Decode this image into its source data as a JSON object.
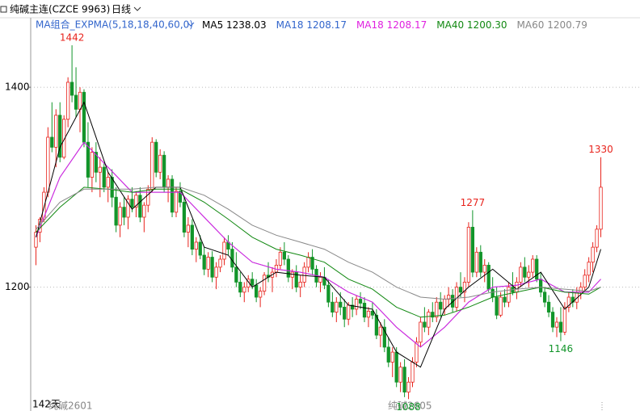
{
  "chart_data": {
    "type": "candlestick",
    "title": "纯碱主连(CZCE 9963)",
    "period": "日线",
    "indicator": "MA组合_EXPMA(5,18,18,40,60,0)",
    "ylim": [
      1085,
      1455
    ],
    "yticks": [
      1200,
      1400
    ],
    "grid": true,
    "up_color": "#e8231c",
    "down_color": "#12952a",
    "candles": [
      [
        1240,
        1262,
        1222,
        1255
      ],
      [
        1255,
        1270,
        1245,
        1268
      ],
      [
        1268,
        1300,
        1265,
        1295
      ],
      [
        1295,
        1360,
        1290,
        1350
      ],
      [
        1350,
        1385,
        1335,
        1340
      ],
      [
        1340,
        1378,
        1320,
        1372
      ],
      [
        1372,
        1385,
        1325,
        1330
      ],
      [
        1330,
        1372,
        1328,
        1368
      ],
      [
        1368,
        1410,
        1360,
        1405
      ],
      [
        1405,
        1442,
        1385,
        1392
      ],
      [
        1392,
        1420,
        1370,
        1378
      ],
      [
        1378,
        1400,
        1355,
        1395
      ],
      [
        1395,
        1398,
        1340,
        1345
      ],
      [
        1345,
        1365,
        1300,
        1310
      ],
      [
        1310,
        1340,
        1295,
        1335
      ],
      [
        1335,
        1345,
        1305,
        1315
      ],
      [
        1315,
        1330,
        1290,
        1320
      ],
      [
        1320,
        1325,
        1295,
        1300
      ],
      [
        1300,
        1315,
        1285,
        1310
      ],
      [
        1310,
        1318,
        1280,
        1290
      ],
      [
        1290,
        1300,
        1255,
        1262
      ],
      [
        1262,
        1285,
        1250,
        1280
      ],
      [
        1280,
        1290,
        1262,
        1270
      ],
      [
        1270,
        1292,
        1258,
        1288
      ],
      [
        1288,
        1300,
        1275,
        1280
      ],
      [
        1280,
        1296,
        1270,
        1292
      ],
      [
        1292,
        1300,
        1265,
        1270
      ],
      [
        1270,
        1285,
        1255,
        1282
      ],
      [
        1282,
        1302,
        1275,
        1298
      ],
      [
        1298,
        1350,
        1295,
        1345
      ],
      [
        1345,
        1348,
        1310,
        1315
      ],
      [
        1315,
        1338,
        1308,
        1332
      ],
      [
        1332,
        1336,
        1295,
        1300
      ],
      [
        1300,
        1312,
        1285,
        1308
      ],
      [
        1308,
        1312,
        1270,
        1275
      ],
      [
        1275,
        1300,
        1270,
        1296
      ],
      [
        1296,
        1305,
        1280,
        1285
      ],
      [
        1285,
        1290,
        1250,
        1255
      ],
      [
        1255,
        1270,
        1240,
        1262
      ],
      [
        1262,
        1268,
        1232,
        1238
      ],
      [
        1238,
        1250,
        1225,
        1245
      ],
      [
        1245,
        1252,
        1228,
        1232
      ],
      [
        1232,
        1240,
        1212,
        1218
      ],
      [
        1218,
        1235,
        1210,
        1230
      ],
      [
        1230,
        1236,
        1205,
        1210
      ],
      [
        1210,
        1225,
        1198,
        1220
      ],
      [
        1220,
        1232,
        1215,
        1228
      ],
      [
        1228,
        1250,
        1222,
        1245
      ],
      [
        1245,
        1252,
        1232,
        1238
      ],
      [
        1238,
        1245,
        1215,
        1220
      ],
      [
        1220,
        1235,
        1200,
        1205
      ],
      [
        1205,
        1215,
        1190,
        1195
      ],
      [
        1195,
        1205,
        1185,
        1200
      ],
      [
        1200,
        1212,
        1195,
        1208
      ],
      [
        1208,
        1215,
        1198,
        1202
      ],
      [
        1202,
        1208,
        1185,
        1190
      ],
      [
        1190,
        1200,
        1180,
        1196
      ],
      [
        1196,
        1215,
        1192,
        1212
      ],
      [
        1212,
        1225,
        1205,
        1210
      ],
      [
        1210,
        1220,
        1195,
        1215
      ],
      [
        1215,
        1228,
        1210,
        1222
      ],
      [
        1222,
        1240,
        1218,
        1235
      ],
      [
        1235,
        1245,
        1222,
        1228
      ],
      [
        1228,
        1232,
        1205,
        1210
      ],
      [
        1210,
        1218,
        1198,
        1215
      ],
      [
        1215,
        1222,
        1195,
        1200
      ],
      [
        1200,
        1212,
        1190,
        1205
      ],
      [
        1205,
        1225,
        1200,
        1220
      ],
      [
        1220,
        1235,
        1215,
        1230
      ],
      [
        1230,
        1238,
        1212,
        1218
      ],
      [
        1218,
        1222,
        1200,
        1205
      ],
      [
        1205,
        1215,
        1195,
        1210
      ],
      [
        1210,
        1220,
        1198,
        1202
      ],
      [
        1202,
        1208,
        1180,
        1185
      ],
      [
        1185,
        1195,
        1170,
        1175
      ],
      [
        1175,
        1190,
        1165,
        1185
      ],
      [
        1185,
        1195,
        1172,
        1180
      ],
      [
        1180,
        1188,
        1160,
        1168
      ],
      [
        1168,
        1185,
        1162,
        1182
      ],
      [
        1182,
        1190,
        1170,
        1178
      ],
      [
        1178,
        1192,
        1172,
        1188
      ],
      [
        1188,
        1195,
        1178,
        1184
      ],
      [
        1184,
        1190,
        1165,
        1170
      ],
      [
        1170,
        1180,
        1160,
        1176
      ],
      [
        1176,
        1185,
        1168,
        1172
      ],
      [
        1172,
        1178,
        1148,
        1152
      ],
      [
        1152,
        1165,
        1140,
        1160
      ],
      [
        1160,
        1168,
        1135,
        1140
      ],
      [
        1140,
        1150,
        1120,
        1125
      ],
      [
        1125,
        1140,
        1110,
        1135
      ],
      [
        1135,
        1140,
        1100,
        1105
      ],
      [
        1105,
        1125,
        1095,
        1120
      ],
      [
        1120,
        1128,
        1090,
        1095
      ],
      [
        1095,
        1110,
        1088,
        1105
      ],
      [
        1105,
        1130,
        1100,
        1125
      ],
      [
        1125,
        1150,
        1120,
        1145
      ],
      [
        1145,
        1170,
        1140,
        1165
      ],
      [
        1165,
        1180,
        1155,
        1160
      ],
      [
        1160,
        1178,
        1152,
        1175
      ],
      [
        1175,
        1185,
        1165,
        1170
      ],
      [
        1170,
        1190,
        1165,
        1185
      ],
      [
        1185,
        1195,
        1170,
        1178
      ],
      [
        1178,
        1192,
        1172,
        1188
      ],
      [
        1188,
        1200,
        1180,
        1192
      ],
      [
        1192,
        1198,
        1175,
        1180
      ],
      [
        1180,
        1205,
        1176,
        1200
      ],
      [
        1200,
        1215,
        1190,
        1195
      ],
      [
        1195,
        1210,
        1185,
        1205
      ],
      [
        1205,
        1265,
        1200,
        1260
      ],
      [
        1260,
        1277,
        1210,
        1215
      ],
      [
        1215,
        1240,
        1210,
        1235
      ],
      [
        1235,
        1242,
        1210,
        1215
      ],
      [
        1215,
        1228,
        1205,
        1222
      ],
      [
        1222,
        1225,
        1195,
        1198
      ],
      [
        1198,
        1210,
        1185,
        1190
      ],
      [
        1190,
        1200,
        1168,
        1172
      ],
      [
        1172,
        1195,
        1170,
        1190
      ],
      [
        1190,
        1198,
        1180,
        1185
      ],
      [
        1185,
        1205,
        1180,
        1200
      ],
      [
        1200,
        1215,
        1192,
        1195
      ],
      [
        1195,
        1210,
        1188,
        1205
      ],
      [
        1205,
        1225,
        1200,
        1220
      ],
      [
        1220,
        1230,
        1205,
        1210
      ],
      [
        1210,
        1222,
        1200,
        1215
      ],
      [
        1215,
        1232,
        1210,
        1228
      ],
      [
        1228,
        1232,
        1205,
        1208
      ],
      [
        1208,
        1215,
        1190,
        1195
      ],
      [
        1195,
        1200,
        1180,
        1185
      ],
      [
        1185,
        1192,
        1170,
        1175
      ],
      [
        1175,
        1180,
        1155,
        1160
      ],
      [
        1160,
        1170,
        1150,
        1165
      ],
      [
        1165,
        1180,
        1146,
        1155
      ],
      [
        1155,
        1185,
        1152,
        1180
      ],
      [
        1180,
        1195,
        1175,
        1190
      ],
      [
        1190,
        1198,
        1180,
        1185
      ],
      [
        1185,
        1200,
        1178,
        1195
      ],
      [
        1195,
        1205,
        1188,
        1200
      ],
      [
        1200,
        1218,
        1195,
        1212
      ],
      [
        1212,
        1230,
        1205,
        1225
      ],
      [
        1225,
        1245,
        1215,
        1240
      ],
      [
        1240,
        1262,
        1235,
        1258
      ],
      [
        1258,
        1330,
        1250,
        1300
      ]
    ],
    "ma_x": [
      0,
      6,
      12,
      18,
      24,
      30,
      36,
      42,
      48,
      54,
      60,
      66,
      72,
      78,
      84,
      90,
      96,
      102,
      108,
      114,
      120,
      126,
      132,
      138,
      141
    ],
    "series": [
      {
        "name": "MA5",
        "last": 1238.03,
        "color": "#000000",
        "values": [
          1250,
          1340,
          1385,
          1315,
          1278,
          1300,
          1300,
          1240,
          1232,
          1200,
          1215,
          1212,
          1210,
          1182,
          1178,
          1135,
          1120,
          1178,
          1200,
          1218,
          1198,
          1215,
          1178,
          1200,
          1238
        ]
      },
      {
        "name": "MA18",
        "last": 1208.17,
        "color": "#3366cc",
        "values": [
          1250,
          1310,
          1345,
          1320,
          1295,
          1295,
          1295,
          1270,
          1245,
          1225,
          1218,
          1215,
          1210,
          1195,
          1185,
          1160,
          1140,
          1160,
          1185,
          1200,
          1202,
          1208,
          1195,
          1195,
          1208
        ]
      },
      {
        "name": "MA18",
        "last": 1208.17,
        "color": "#e020e0",
        "values": [
          1250,
          1310,
          1345,
          1320,
          1295,
          1295,
          1295,
          1270,
          1245,
          1225,
          1218,
          1215,
          1210,
          1195,
          1185,
          1160,
          1140,
          1160,
          1185,
          1200,
          1202,
          1208,
          1195,
          1195,
          1208
        ]
      },
      {
        "name": "MA40",
        "last": 1200.3,
        "color": "#118811",
        "values": [
          1255,
          1280,
          1300,
          1298,
          1295,
          1298,
          1298,
          1285,
          1268,
          1250,
          1238,
          1232,
          1225,
          1208,
          1198,
          1180,
          1170,
          1172,
          1180,
          1190,
          1195,
          1200,
          1195,
          1193,
          1200
        ]
      },
      {
        "name": "MA60",
        "last": 1200.79,
        "color": "#888888",
        "values": [
          1258,
          1285,
          1298,
          1298,
          1298,
          1300,
          1300,
          1292,
          1278,
          1262,
          1252,
          1245,
          1238,
          1225,
          1215,
          1200,
          1190,
          1188,
          1190,
          1195,
          1198,
          1200,
          1198,
          1196,
          1200
        ]
      }
    ],
    "legend_value_labels": [
      "1238.03",
      "1208.17",
      "1208.17",
      "1200.30",
      "1200.79"
    ],
    "annotations": [
      {
        "value": 1442,
        "x": 9,
        "color": "#e8231c",
        "pos": "high"
      },
      {
        "value": 1277,
        "x": 109,
        "color": "#e8231c",
        "pos": "high"
      },
      {
        "value": 1330,
        "x": 141,
        "color": "#e8231c",
        "pos": "high"
      },
      {
        "value": 1088,
        "x": 93,
        "color": "#12952a",
        "pos": "low"
      },
      {
        "value": 1146,
        "x": 131,
        "color": "#12952a",
        "pos": "low"
      }
    ],
    "footer": {
      "days": "142天",
      "contract_a": "纯碱2601",
      "contract_b": "纯碱2605"
    }
  }
}
